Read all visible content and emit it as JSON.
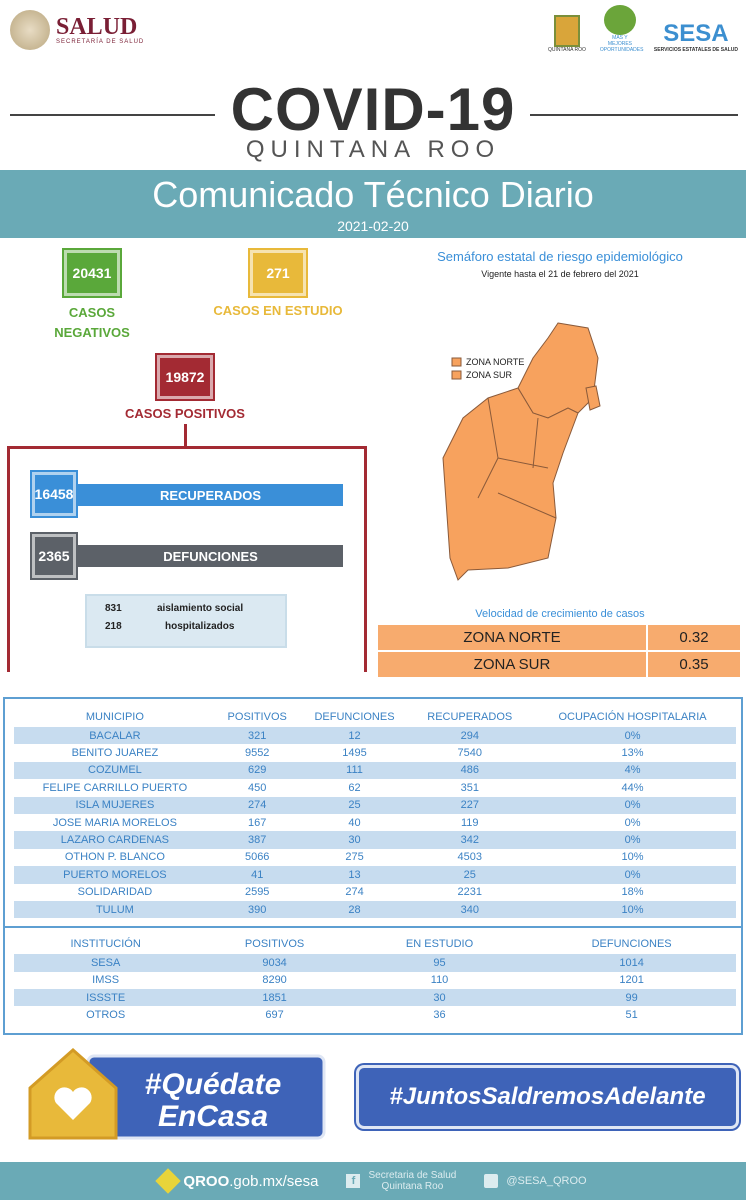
{
  "header": {
    "salud": "SALUD",
    "salud_sub": "SECRETARÍA DE SALUD",
    "qroo_logo": "QUINTANA ROO",
    "mas_logo": "MÁS Y MEJORES OPORTUNIDADES",
    "sesa": "SESA",
    "sesa_sub": "SERVICIOS ESTATALES DE SALUD"
  },
  "title": {
    "main": "COVID-19",
    "sub": "QUINTANA ROO"
  },
  "banner": {
    "title": "Comunicado Técnico Diario",
    "date": "2021-02-20"
  },
  "stats": {
    "negativos": {
      "value": "20431",
      "label": "CASOS NEGATIVOS"
    },
    "estudio": {
      "value": "271",
      "label": "CASOS EN ESTUDIO"
    },
    "positivos": {
      "value": "19872",
      "label": "CASOS POSITIVOS"
    },
    "recuperados": {
      "value": "16458",
      "label": "RECUPERADOS"
    },
    "defunciones": {
      "value": "2365",
      "label": "DEFUNCIONES"
    },
    "aislamiento": {
      "value": "831",
      "label": "aislamiento social"
    },
    "hospitalizados": {
      "value": "218",
      "label": "hospitalizados"
    }
  },
  "semaforo": {
    "title": "Semáforo estatal de riesgo epidemiológico",
    "vigente": "Vigente hasta el 21 de febrero del 2021",
    "legend": [
      "ZONA NORTE",
      "ZONA SUR"
    ],
    "color": "#f7a25e"
  },
  "velocidad": {
    "title": "Velocidad de crecimiento de casos",
    "rows": [
      {
        "zona": "ZONA NORTE",
        "valor": "0.32"
      },
      {
        "zona": "ZONA SUR",
        "valor": "0.35"
      }
    ]
  },
  "municipios": {
    "headers": [
      "MUNICIPIO",
      "POSITIVOS",
      "DEFUNCIONES",
      "RECUPERADOS",
      "OCUPACIÓN HOSPITALARIA"
    ],
    "rows": [
      [
        "BACALAR",
        "321",
        "12",
        "294",
        "0%"
      ],
      [
        "BENITO JUAREZ",
        "9552",
        "1495",
        "7540",
        "13%"
      ],
      [
        "COZUMEL",
        "629",
        "111",
        "486",
        "4%"
      ],
      [
        "FELIPE CARRILLO PUERTO",
        "450",
        "62",
        "351",
        "44%"
      ],
      [
        "ISLA MUJERES",
        "274",
        "25",
        "227",
        "0%"
      ],
      [
        "JOSE MARIA MORELOS",
        "167",
        "40",
        "119",
        "0%"
      ],
      [
        "LAZARO CARDENAS",
        "387",
        "30",
        "342",
        "0%"
      ],
      [
        "OTHON P. BLANCO",
        "5066",
        "275",
        "4503",
        "10%"
      ],
      [
        "PUERTO MORELOS",
        "41",
        "13",
        "25",
        "0%"
      ],
      [
        "SOLIDARIDAD",
        "2595",
        "274",
        "2231",
        "18%"
      ],
      [
        "TULUM",
        "390",
        "28",
        "340",
        "10%"
      ]
    ]
  },
  "instituciones": {
    "headers": [
      "INSTITUCIÓN",
      "POSITIVOS",
      "EN ESTUDIO",
      "DEFUNCIONES"
    ],
    "rows": [
      [
        "SESA",
        "9034",
        "95",
        "1014"
      ],
      [
        "IMSS",
        "8290",
        "110",
        "1201"
      ],
      [
        "ISSSTE",
        "1851",
        "30",
        "99"
      ],
      [
        "OTROS",
        "697",
        "36",
        "51"
      ]
    ]
  },
  "campaigns": {
    "quedate_1": "#Quédate",
    "quedate_2": "EnCasa",
    "juntos": "#JuntosSaldremosAdelante"
  },
  "footer": {
    "site_bold": "QROO",
    "site": ".gob.mx/sesa",
    "facebook_1": "Secretaria de Salud",
    "facebook_2": "Quintana Roo",
    "twitter": "@SESA_QROO"
  }
}
